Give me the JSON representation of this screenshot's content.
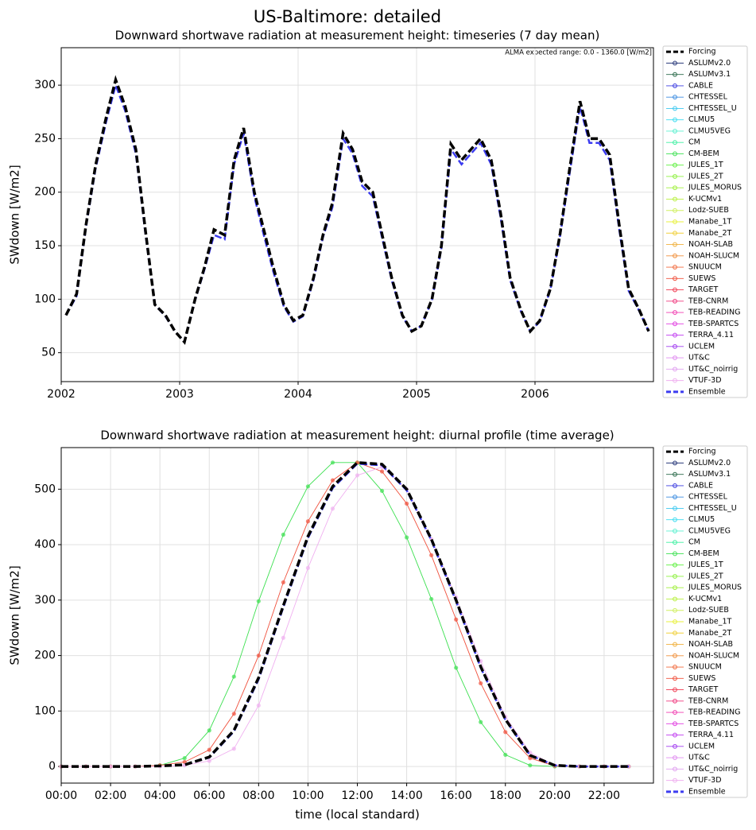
{
  "title": "US-Baltimore: detailed",
  "chart_data": [
    {
      "type": "line",
      "title": "Downward shortwave radiation at measurement height: timeseries (7 day mean)",
      "annotation": "ALMA expected range: 0.0 - 1360.0 [W/m2]",
      "ylabel": "SWdown [W/m2]",
      "xlim": [
        2002,
        2007
      ],
      "xticks": [
        2002,
        2003,
        2004,
        2005,
        2006
      ],
      "ylim": [
        23,
        335
      ],
      "yticks": [
        50,
        100,
        150,
        200,
        250,
        300
      ],
      "grid": true,
      "legend": "outside right",
      "x": [
        2002.04,
        2002.13,
        2002.21,
        2002.29,
        2002.38,
        2002.46,
        2002.54,
        2002.63,
        2002.71,
        2002.79,
        2002.88,
        2002.96,
        2003.04,
        2003.13,
        2003.21,
        2003.29,
        2003.38,
        2003.46,
        2003.54,
        2003.63,
        2003.71,
        2003.79,
        2003.88,
        2003.96,
        2004.04,
        2004.13,
        2004.21,
        2004.29,
        2004.38,
        2004.46,
        2004.54,
        2004.63,
        2004.71,
        2004.79,
        2004.88,
        2004.96,
        2005.04,
        2005.13,
        2005.21,
        2005.29,
        2005.38,
        2005.46,
        2005.54,
        2005.63,
        2005.71,
        2005.79,
        2005.88,
        2005.96,
        2006.04,
        2006.13,
        2006.21,
        2006.29,
        2006.38,
        2006.46,
        2006.54,
        2006.63,
        2006.71,
        2006.79,
        2006.88,
        2006.96
      ],
      "series": [
        {
          "name": "Forcing",
          "color": "#000000",
          "linestyle": "dashed",
          "values": [
            85,
            105,
            170,
            225,
            270,
            305,
            280,
            240,
            165,
            95,
            85,
            70,
            60,
            100,
            130,
            165,
            160,
            230,
            260,
            200,
            165,
            130,
            95,
            80,
            85,
            120,
            160,
            190,
            255,
            240,
            210,
            200,
            160,
            120,
            85,
            70,
            75,
            100,
            150,
            245,
            230,
            240,
            250,
            230,
            180,
            120,
            90,
            70,
            80,
            110,
            160,
            220,
            285,
            250,
            250,
            235,
            170,
            110,
            90,
            70
          ]
        },
        {
          "name": "ASLUMv2.0",
          "color": "#2a3a7a"
        },
        {
          "name": "ASLUMv3.1",
          "color": "#2a6a4a"
        },
        {
          "name": "CABLE",
          "color": "#3c3ce0"
        },
        {
          "name": "CHTESSEL",
          "color": "#3c8ce0"
        },
        {
          "name": "CHTESSEL_U",
          "color": "#3cc8f0"
        },
        {
          "name": "CLMU5",
          "color": "#3cdcf0"
        },
        {
          "name": "CLMU5VEG",
          "color": "#5cf0d0"
        },
        {
          "name": "CM",
          "color": "#3cf0a0"
        },
        {
          "name": "CM-BEM",
          "color": "#3ce050"
        },
        {
          "name": "JULES_1T",
          "color": "#5cf03c"
        },
        {
          "name": "JULES_2T",
          "color": "#8cf03c"
        },
        {
          "name": "JULES_MORUS",
          "color": "#a0f03c"
        },
        {
          "name": "K-UCMv1",
          "color": "#b8f03c"
        },
        {
          "name": "Lodz-SUEB",
          "color": "#d0f060"
        },
        {
          "name": "Manabe_1T",
          "color": "#e8f03c"
        },
        {
          "name": "Manabe_2T",
          "color": "#f0d03c"
        },
        {
          "name": "NOAH-SLAB",
          "color": "#f0b03c"
        },
        {
          "name": "NOAH-SLUCM",
          "color": "#f0903c"
        },
        {
          "name": "SNUUCM",
          "color": "#f06a3c"
        },
        {
          "name": "SUEWS",
          "color": "#f0503c"
        },
        {
          "name": "TARGET",
          "color": "#f03c50"
        },
        {
          "name": "TEB-CNRM",
          "color": "#f03c80"
        },
        {
          "name": "TEB-READING",
          "color": "#f03cb0"
        },
        {
          "name": "TEB-SPARTCS",
          "color": "#e03ce0"
        },
        {
          "name": "TERRA_4.11",
          "color": "#c03cf0"
        },
        {
          "name": "UCLEM",
          "color": "#a03cf0"
        },
        {
          "name": "UT&C",
          "color": "#e08cf0"
        },
        {
          "name": "UT&C_noirrig",
          "color": "#e0a0f0"
        },
        {
          "name": "VTUF-3D",
          "color": "#f0b0f0"
        },
        {
          "name": "Ensemble",
          "color": "#3c3cf0",
          "linestyle": "dashed",
          "values": [
            85,
            103,
            168,
            222,
            266,
            300,
            276,
            236,
            162,
            95,
            84,
            70,
            60,
            99,
            128,
            160,
            156,
            226,
            255,
            196,
            160,
            126,
            93,
            79,
            84,
            118,
            158,
            186,
            250,
            236,
            206,
            196,
            157,
            118,
            84,
            70,
            75,
            99,
            148,
            240,
            226,
            236,
            246,
            226,
            176,
            118,
            89,
            70,
            79,
            109,
            158,
            216,
            280,
            246,
            246,
            230,
            166,
            108,
            89,
            70
          ]
        }
      ]
    },
    {
      "type": "line",
      "title": "Downward shortwave radiation at measurement height: diurnal profile (time average)",
      "xlabel": "time (local standard)",
      "ylabel": "SWdown [W/m2]",
      "xlim": [
        0,
        24
      ],
      "xticks": [
        {
          "value": 0,
          "label": "00:00"
        },
        {
          "value": 2,
          "label": "02:00"
        },
        {
          "value": 4,
          "label": "04:00"
        },
        {
          "value": 6,
          "label": "06:00"
        },
        {
          "value": 8,
          "label": "08:00"
        },
        {
          "value": 10,
          "label": "10:00"
        },
        {
          "value": 12,
          "label": "12:00"
        },
        {
          "value": 14,
          "label": "14:00"
        },
        {
          "value": 16,
          "label": "16:00"
        },
        {
          "value": 18,
          "label": "18:00"
        },
        {
          "value": 20,
          "label": "20:00"
        },
        {
          "value": 22,
          "label": "22:00"
        }
      ],
      "ylim": [
        -30,
        575
      ],
      "yticks": [
        0,
        100,
        200,
        300,
        400,
        500
      ],
      "grid": true,
      "legend": "outside right",
      "x": [
        0,
        1,
        2,
        3,
        4,
        5,
        6,
        7,
        8,
        9,
        10,
        11,
        12,
        13,
        14,
        15,
        16,
        17,
        18,
        19,
        20,
        21,
        22,
        23
      ],
      "series": [
        {
          "name": "Forcing",
          "color": "#000000",
          "linestyle": "dashed",
          "values": [
            0,
            0,
            0,
            0,
            1,
            3,
            17,
            65,
            160,
            290,
            415,
            505,
            548,
            545,
            500,
            410,
            300,
            180,
            85,
            20,
            2,
            0,
            0,
            0
          ]
        },
        {
          "name": "ASLUMv2.0",
          "color": "#2a3a7a"
        },
        {
          "name": "ASLUMv3.1",
          "color": "#2a6a4a"
        },
        {
          "name": "CABLE",
          "color": "#3c3ce0"
        },
        {
          "name": "CHTESSEL",
          "color": "#3c8ce0"
        },
        {
          "name": "CHTESSEL_U",
          "color": "#3cc8f0"
        },
        {
          "name": "CLMU5",
          "color": "#3cdcf0"
        },
        {
          "name": "CLMU5VEG",
          "color": "#5cf0d0"
        },
        {
          "name": "CM",
          "color": "#3cf0a0"
        },
        {
          "name": "CM-BEM",
          "color": "#3ce050",
          "values": [
            0,
            0,
            0,
            0,
            2,
            15,
            65,
            162,
            298,
            418,
            505,
            548,
            548,
            497,
            413,
            302,
            178,
            80,
            21,
            2,
            0,
            0,
            0,
            0
          ]
        },
        {
          "name": "JULES_1T",
          "color": "#5cf03c"
        },
        {
          "name": "JULES_2T",
          "color": "#8cf03c"
        },
        {
          "name": "JULES_MORUS",
          "color": "#a0f03c"
        },
        {
          "name": "K-UCMv1",
          "color": "#b8f03c"
        },
        {
          "name": "Lodz-SUEB",
          "color": "#d0f060"
        },
        {
          "name": "Manabe_1T",
          "color": "#e8f03c"
        },
        {
          "name": "Manabe_2T",
          "color": "#f0d03c"
        },
        {
          "name": "NOAH-SLAB",
          "color": "#f0b03c"
        },
        {
          "name": "NOAH-SLUCM",
          "color": "#f0903c"
        },
        {
          "name": "SNUUCM",
          "color": "#f06a3c"
        },
        {
          "name": "SUEWS",
          "color": "#f0503c",
          "values": [
            0,
            0,
            0,
            0,
            2,
            8,
            30,
            95,
            200,
            332,
            442,
            516,
            548,
            532,
            474,
            381,
            265,
            150,
            62,
            15,
            1,
            0,
            0,
            0
          ]
        },
        {
          "name": "TARGET",
          "color": "#f03c50"
        },
        {
          "name": "TEB-CNRM",
          "color": "#f03c80"
        },
        {
          "name": "TEB-READING",
          "color": "#f03cb0"
        },
        {
          "name": "TEB-SPARTCS",
          "color": "#e03ce0"
        },
        {
          "name": "TERRA_4.11",
          "color": "#c03cf0"
        },
        {
          "name": "UCLEM",
          "color": "#a03cf0"
        },
        {
          "name": "UT&C",
          "color": "#e08cf0"
        },
        {
          "name": "UT&C_noirrig",
          "color": "#e0a0f0"
        },
        {
          "name": "VTUF-3D",
          "color": "#f0b0f0",
          "values": [
            0,
            0,
            0,
            0,
            0,
            2,
            10,
            32,
            110,
            232,
            358,
            465,
            525,
            540,
            500,
            410,
            305,
            190,
            90,
            25,
            2,
            0,
            0,
            0
          ]
        },
        {
          "name": "Ensemble",
          "color": "#3c3cf0",
          "linestyle": "dashed",
          "values": [
            0,
            0,
            0,
            0,
            1,
            3,
            16,
            63,
            157,
            287,
            412,
            502,
            546,
            543,
            498,
            408,
            298,
            178,
            84,
            20,
            2,
            0,
            0,
            0
          ]
        }
      ]
    }
  ]
}
